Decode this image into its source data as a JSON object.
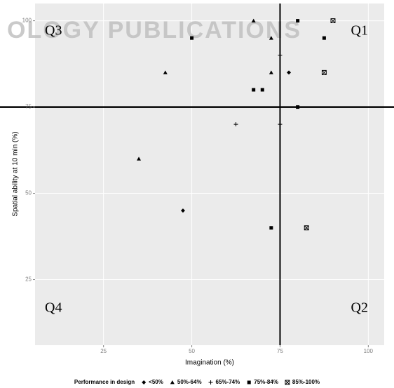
{
  "chart_data": {
    "type": "scatter",
    "x_label": "Imagination (%)",
    "y_label": "Spatial ability at 10 min (%)",
    "legend_title": "Performance in design",
    "legend_position": "bottom",
    "annotations": [
      "Q3",
      "Q1",
      "Q4",
      "Q2"
    ],
    "watermark": "OLOGY PUBLICATIONS",
    "hline": 75,
    "vline": 75,
    "xlim": [
      5.6,
      104.5
    ],
    "ylim": [
      6,
      105
    ],
    "xticks": [
      25,
      50,
      75,
      100
    ],
    "yticks": [
      25,
      50,
      75,
      100
    ],
    "grid": true,
    "series": [
      {
        "name": "<50%",
        "color": "#000000",
        "shape": "diamond",
        "x": [
          77.5,
          47.5
        ],
        "y": [
          85,
          45
        ]
      },
      {
        "name": "50%-64%",
        "color": "#000000",
        "shape": "triangle",
        "x": [
          67.5,
          72.5,
          42.5,
          72.5,
          35
        ],
        "y": [
          100,
          95,
          85,
          85,
          60
        ]
      },
      {
        "name": "65%-74%",
        "color": "#000000",
        "shape": "plus",
        "x": [
          62.5,
          75,
          75
        ],
        "y": [
          70,
          90,
          70
        ]
      },
      {
        "name": "75%-84%",
        "color": "#000000",
        "shape": "square",
        "x": [
          80,
          50,
          87.5,
          67.5,
          70,
          80,
          72.5
        ],
        "y": [
          100,
          95,
          95,
          80,
          80,
          75,
          40
        ]
      },
      {
        "name": "85%-100%",
        "color": "#000000",
        "shape": "square-x",
        "x": [
          90,
          87.5,
          82.5
        ],
        "y": [
          100,
          85,
          40
        ]
      }
    ]
  }
}
